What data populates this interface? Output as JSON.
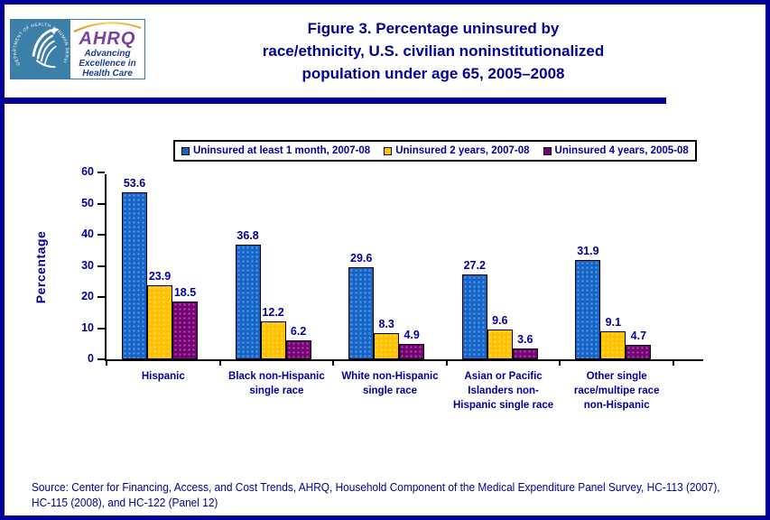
{
  "header": {
    "hhs_seal_text": "DEPARTMENT OF HEALTH & HUMAN SERVICES · USA",
    "ahrq": {
      "acronym": "AHRQ",
      "tagline_lines": [
        "Advancing",
        "Excellence in",
        "Health Care"
      ]
    },
    "title_lines": [
      "Figure 3. Percentage uninsured by",
      "race/ethnicity, U.S. civilian noninstitutionalized",
      "population under age 65, 2005–2008"
    ]
  },
  "chart_data": {
    "type": "bar",
    "title": "Figure 3. Percentage uninsured by race/ethnicity, U.S. civilian noninstitutionalized population under age 65, 2005–2008",
    "xlabel": "",
    "ylabel": "Percentage",
    "ylim": [
      0,
      60
    ],
    "yticks": [
      0,
      10,
      20,
      30,
      40,
      50,
      60
    ],
    "grid": false,
    "legend_position": "top",
    "categories": [
      "Hispanic",
      "Black non-Hispanic single race",
      "White non-Hispanic single race",
      "Asian or Pacific Islanders non-Hispanic single race",
      "Other single race/multipe race non-Hispanic"
    ],
    "category_label_lines": [
      [
        "Hispanic"
      ],
      [
        "Black non-Hispanic",
        "single race"
      ],
      [
        "White non-Hispanic",
        "single race"
      ],
      [
        "Asian or Pacific",
        "Islanders non-",
        "Hispanic single race"
      ],
      [
        "Other single",
        "race/multipe race",
        "non-Hispanic"
      ]
    ],
    "series": [
      {
        "name": "Uninsured at least 1 month, 2007-08",
        "color": "#1565c8",
        "values": [
          53.6,
          36.8,
          29.6,
          27.2,
          31.9
        ]
      },
      {
        "name": "Uninsured 2 years, 2007-08",
        "color": "#ffc200",
        "values": [
          23.9,
          12.2,
          8.3,
          9.6,
          9.1
        ]
      },
      {
        "name": "Uninsured 4 years, 2005-08",
        "color": "#760076",
        "values": [
          18.5,
          6.2,
          4.9,
          3.6,
          4.7
        ]
      }
    ]
  },
  "source": {
    "line1": "Source: Center for Financing, Access, and Cost Trends, AHRQ, Household Component of the Medical Expenditure Panel Survey, HC-113 (2007),",
    "line2": "HC-115 (2008), and HC-122 (Panel 12)"
  },
  "colors": {
    "navy": "#000099",
    "hhs_teal": "#3c7fa8",
    "ahrq_purple": "#7b3f9e",
    "axis_black": "#000000"
  }
}
